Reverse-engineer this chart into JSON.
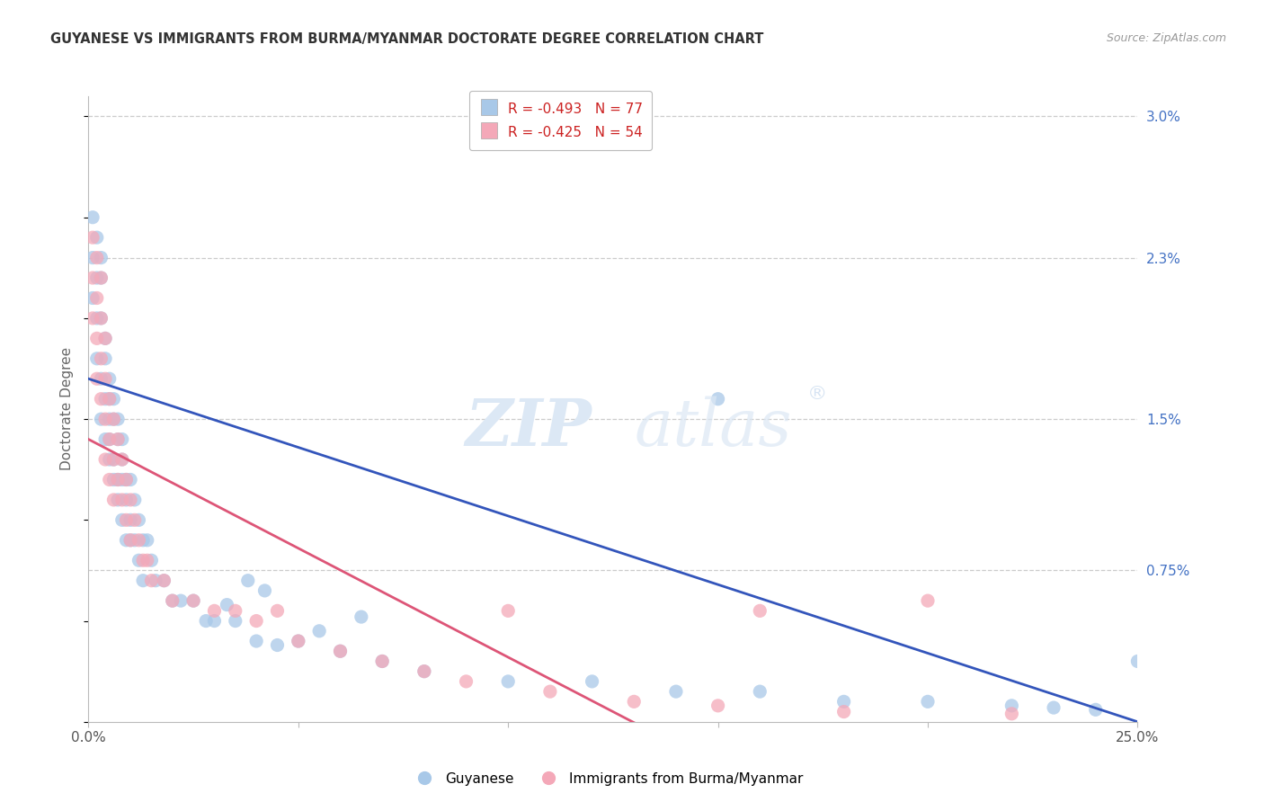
{
  "title": "GUYANESE VS IMMIGRANTS FROM BURMA/MYANMAR DOCTORATE DEGREE CORRELATION CHART",
  "source": "Source: ZipAtlas.com",
  "ylabel": "Doctorate Degree",
  "blue_label": "Guyanese",
  "pink_label": "Immigrants from Burma/Myanmar",
  "blue_R": -0.493,
  "blue_N": 77,
  "pink_R": -0.425,
  "pink_N": 54,
  "blue_color": "#a8c8e8",
  "pink_color": "#f4a8b8",
  "blue_line_color": "#3355bb",
  "pink_line_color": "#dd5577",
  "xmin": 0.0,
  "xmax": 0.25,
  "ymin": 0.0,
  "ymax": 0.031,
  "ytick_vals": [
    0.0075,
    0.015,
    0.023,
    0.03
  ],
  "ytick_labels": [
    "0.75%",
    "1.5%",
    "2.3%",
    "3.0%"
  ],
  "grid_color": "#cccccc",
  "background_color": "#ffffff",
  "blue_x": [
    0.001,
    0.001,
    0.001,
    0.002,
    0.002,
    0.002,
    0.002,
    0.003,
    0.003,
    0.003,
    0.003,
    0.003,
    0.004,
    0.004,
    0.004,
    0.004,
    0.005,
    0.005,
    0.005,
    0.005,
    0.005,
    0.006,
    0.006,
    0.006,
    0.006,
    0.007,
    0.007,
    0.007,
    0.007,
    0.008,
    0.008,
    0.008,
    0.008,
    0.009,
    0.009,
    0.009,
    0.01,
    0.01,
    0.01,
    0.011,
    0.011,
    0.012,
    0.012,
    0.013,
    0.013,
    0.014,
    0.015,
    0.016,
    0.018,
    0.02,
    0.022,
    0.025,
    0.028,
    0.03,
    0.035,
    0.04,
    0.05,
    0.06,
    0.07,
    0.08,
    0.1,
    0.12,
    0.14,
    0.16,
    0.18,
    0.2,
    0.22,
    0.23,
    0.24,
    0.25,
    0.045,
    0.055,
    0.065,
    0.15,
    0.033,
    0.038,
    0.042
  ],
  "blue_y": [
    0.023,
    0.021,
    0.025,
    0.022,
    0.02,
    0.024,
    0.018,
    0.022,
    0.02,
    0.023,
    0.017,
    0.015,
    0.019,
    0.016,
    0.018,
    0.014,
    0.017,
    0.015,
    0.013,
    0.016,
    0.014,
    0.015,
    0.013,
    0.016,
    0.012,
    0.014,
    0.012,
    0.015,
    0.011,
    0.013,
    0.012,
    0.01,
    0.014,
    0.012,
    0.011,
    0.009,
    0.012,
    0.01,
    0.009,
    0.011,
    0.009,
    0.01,
    0.008,
    0.009,
    0.007,
    0.009,
    0.008,
    0.007,
    0.007,
    0.006,
    0.006,
    0.006,
    0.005,
    0.005,
    0.005,
    0.004,
    0.004,
    0.0035,
    0.003,
    0.0025,
    0.002,
    0.002,
    0.0015,
    0.0015,
    0.001,
    0.001,
    0.0008,
    0.0007,
    0.0006,
    0.003,
    0.0038,
    0.0045,
    0.0052,
    0.016,
    0.0058,
    0.007,
    0.0065
  ],
  "pink_x": [
    0.001,
    0.001,
    0.001,
    0.002,
    0.002,
    0.002,
    0.002,
    0.003,
    0.003,
    0.003,
    0.003,
    0.004,
    0.004,
    0.004,
    0.004,
    0.005,
    0.005,
    0.005,
    0.006,
    0.006,
    0.006,
    0.007,
    0.007,
    0.008,
    0.008,
    0.009,
    0.009,
    0.01,
    0.01,
    0.011,
    0.012,
    0.013,
    0.014,
    0.015,
    0.018,
    0.02,
    0.025,
    0.03,
    0.035,
    0.04,
    0.045,
    0.05,
    0.06,
    0.07,
    0.08,
    0.09,
    0.1,
    0.11,
    0.13,
    0.15,
    0.16,
    0.18,
    0.2,
    0.22
  ],
  "pink_y": [
    0.024,
    0.022,
    0.02,
    0.023,
    0.021,
    0.019,
    0.017,
    0.022,
    0.02,
    0.018,
    0.016,
    0.019,
    0.017,
    0.015,
    0.013,
    0.016,
    0.014,
    0.012,
    0.015,
    0.013,
    0.011,
    0.014,
    0.012,
    0.013,
    0.011,
    0.012,
    0.01,
    0.011,
    0.009,
    0.01,
    0.009,
    0.008,
    0.008,
    0.007,
    0.007,
    0.006,
    0.006,
    0.0055,
    0.0055,
    0.005,
    0.0055,
    0.004,
    0.0035,
    0.003,
    0.0025,
    0.002,
    0.0055,
    0.0015,
    0.001,
    0.0008,
    0.0055,
    0.0005,
    0.006,
    0.0004
  ]
}
